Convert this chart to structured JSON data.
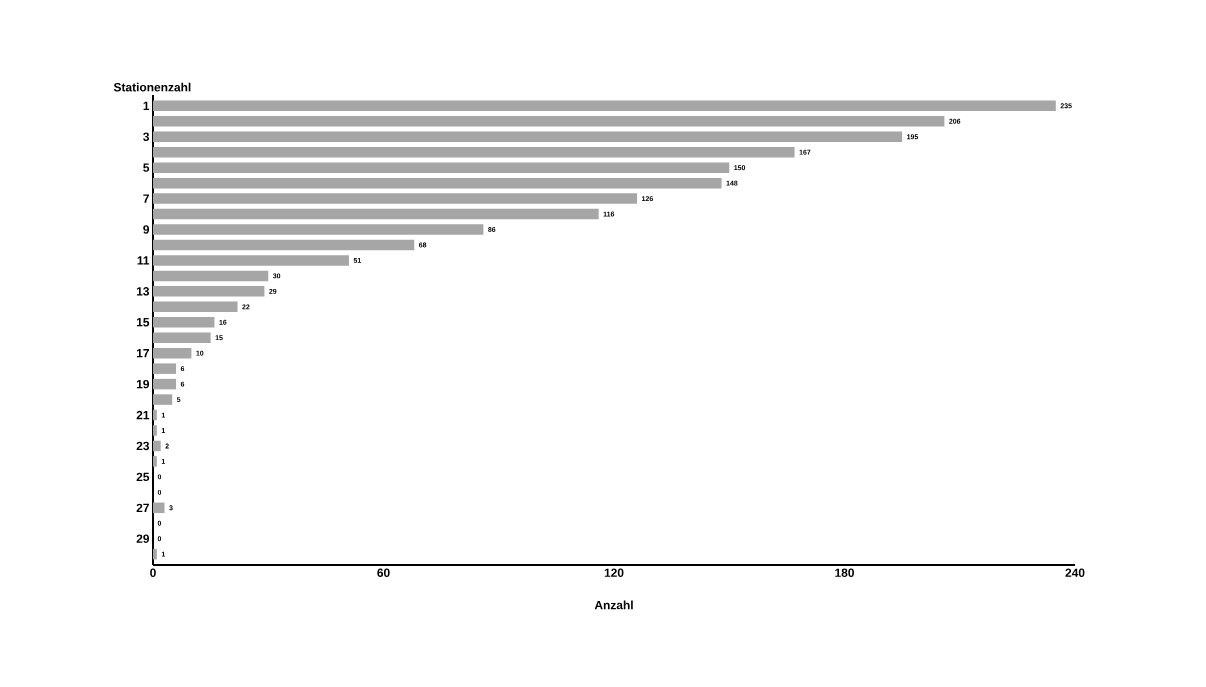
{
  "chart_data": {
    "type": "bar",
    "orientation": "horizontal",
    "xlabel": "Anzahl",
    "ylabel": "Stationenzahl",
    "categories": [
      "1",
      null,
      "3",
      null,
      "5",
      null,
      "7",
      null,
      "9",
      null,
      "11",
      null,
      "13",
      null,
      "15",
      null,
      "17",
      null,
      "19",
      null,
      "21",
      null,
      "23",
      null,
      "25",
      null,
      "27",
      null,
      "29",
      null
    ],
    "values": [
      235,
      206,
      195,
      167,
      150,
      148,
      126,
      116,
      86,
      68,
      51,
      30,
      29,
      22,
      16,
      15,
      10,
      6,
      6,
      5,
      1,
      1,
      2,
      1,
      0,
      0,
      3,
      0,
      0,
      1
    ],
    "color": "#a6a6a6",
    "data_labels": true,
    "xlim": [
      0,
      240
    ],
    "xticks": [
      0,
      60,
      120,
      180,
      240
    ]
  }
}
